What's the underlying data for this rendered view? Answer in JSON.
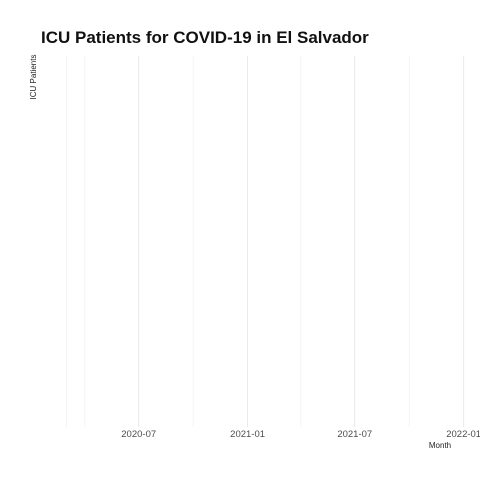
{
  "chart_data": {
    "type": "line",
    "title": "ICU Patients for COVID-19 in El Salvador",
    "xlabel": "Month",
    "ylabel": "ICU Patients",
    "x_tick_labels": [
      "2020-07",
      "2021-01",
      "2021-07",
      "2022-01"
    ],
    "x_ticks": [
      "2020-07-01",
      "2021-01-01",
      "2021-07-01",
      "2022-01-01"
    ],
    "x_minor_ticks": [
      "2020-04-01",
      "2020-10-01",
      "2021-04-01",
      "2021-10-01"
    ],
    "xlim": [
      "2020-03-01",
      "2022-01-01"
    ],
    "series": [],
    "grid": true,
    "legend": "none"
  }
}
